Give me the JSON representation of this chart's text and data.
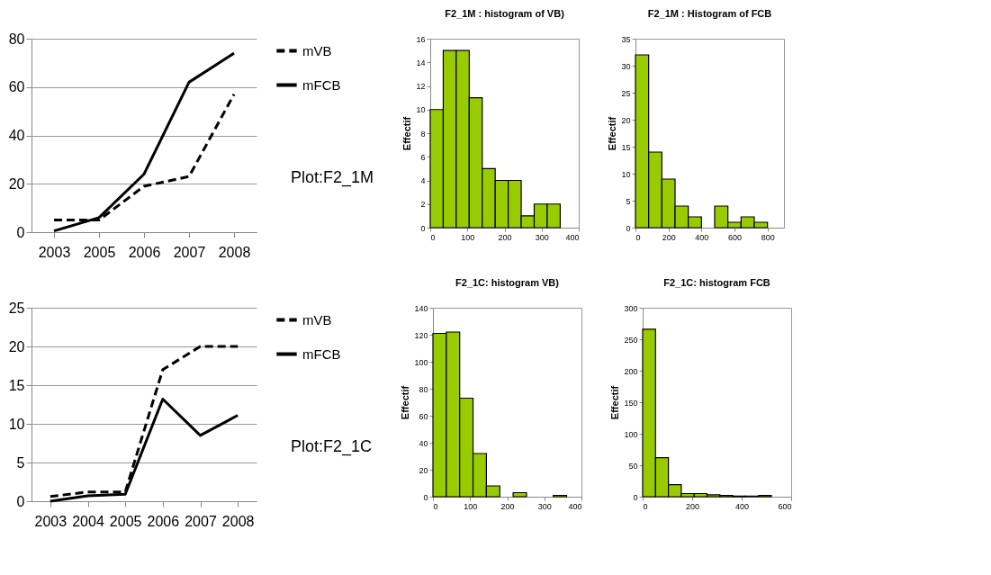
{
  "chart_data": [
    {
      "type": "line",
      "categories": [
        "2003",
        "2005",
        "2006",
        "2007",
        "2008"
      ],
      "ylim": [
        0,
        80
      ],
      "yticks": [
        0,
        20,
        40,
        60,
        80
      ],
      "grid": "y",
      "legend": "right",
      "annotations": [
        "Plot:F2_1M"
      ],
      "series": [
        {
          "name": "mVB",
          "color": "#000000",
          "line_style": "dashed",
          "values": [
            5,
            5,
            19,
            23,
            57
          ]
        },
        {
          "name": "mFCB",
          "color": "#000000",
          "line_style": "solid",
          "values": [
            0.5,
            6,
            24,
            62,
            74
          ]
        }
      ]
    },
    {
      "type": "histogram",
      "title": "F2_1M : histogram of VB)",
      "ylabel": "Effectif",
      "color": "#99cc00",
      "xlim": [
        0,
        400
      ],
      "xticks": [
        0,
        100,
        200,
        300,
        400
      ],
      "ylim": [
        0,
        16
      ],
      "yticks": [
        0,
        2,
        4,
        6,
        8,
        10,
        12,
        14,
        16
      ],
      "bins": [
        0,
        35,
        70,
        105,
        140,
        175,
        210,
        245,
        280,
        315,
        350
      ],
      "values": [
        10,
        15,
        15,
        11,
        5,
        4,
        4,
        1,
        2,
        2
      ]
    },
    {
      "type": "histogram",
      "title": "F2_1M : Histogram of FCB",
      "ylabel": "Effectif",
      "color": "#99cc00",
      "xlim": [
        0,
        900
      ],
      "xticks": [
        0,
        200,
        400,
        600,
        800
      ],
      "ylim": [
        0,
        35
      ],
      "yticks": [
        0,
        5,
        10,
        15,
        20,
        25,
        30,
        35
      ],
      "bins": [
        0,
        80,
        160,
        240,
        320,
        400,
        480,
        560,
        640,
        720,
        800
      ],
      "values": [
        32,
        14,
        9,
        4,
        2,
        0,
        4,
        1,
        2,
        1
      ]
    },
    {
      "type": "line",
      "categories": [
        "2003",
        "2004",
        "2005",
        "2006",
        "2007",
        "2008"
      ],
      "ylim": [
        0,
        25
      ],
      "yticks": [
        0,
        5,
        10,
        15,
        20,
        25
      ],
      "grid": "y",
      "legend": "right",
      "annotations": [
        "Plot:F2_1C"
      ],
      "series": [
        {
          "name": "mVB",
          "color": "#000000",
          "line_style": "dashed",
          "values": [
            0.6,
            1.2,
            1.2,
            17,
            20,
            20
          ]
        },
        {
          "name": "mFCB",
          "color": "#000000",
          "line_style": "solid",
          "values": [
            0,
            0.7,
            0.9,
            13.2,
            8.5,
            11.1
          ]
        }
      ]
    },
    {
      "type": "histogram",
      "title": "F2_1C: histogram VB)",
      "ylabel": "Effectif",
      "color": "#99cc00",
      "xlim": [
        0,
        400
      ],
      "xticks": [
        0,
        100,
        200,
        300,
        400
      ],
      "ylim": [
        0,
        140
      ],
      "yticks": [
        0,
        20,
        40,
        60,
        80,
        100,
        120,
        140
      ],
      "bins": [
        0,
        36,
        72,
        108,
        144,
        180,
        216,
        252,
        288,
        324,
        360
      ],
      "values": [
        121,
        122,
        73,
        32,
        8,
        0,
        3,
        0,
        0,
        1
      ]
    },
    {
      "type": "histogram",
      "title": "F2_1C: histogram FCB",
      "ylabel": "Effectif",
      "color": "#99cc00",
      "xlim": [
        0,
        600
      ],
      "xticks": [
        0,
        200,
        400,
        600
      ],
      "ylim": [
        0,
        300
      ],
      "yticks": [
        0,
        50,
        100,
        150,
        200,
        250,
        300
      ],
      "bins": [
        0,
        52,
        104,
        156,
        208,
        260,
        312,
        364,
        416,
        468,
        520
      ],
      "values": [
        266,
        62,
        19,
        5,
        5,
        3,
        2,
        1,
        1,
        2
      ]
    }
  ]
}
